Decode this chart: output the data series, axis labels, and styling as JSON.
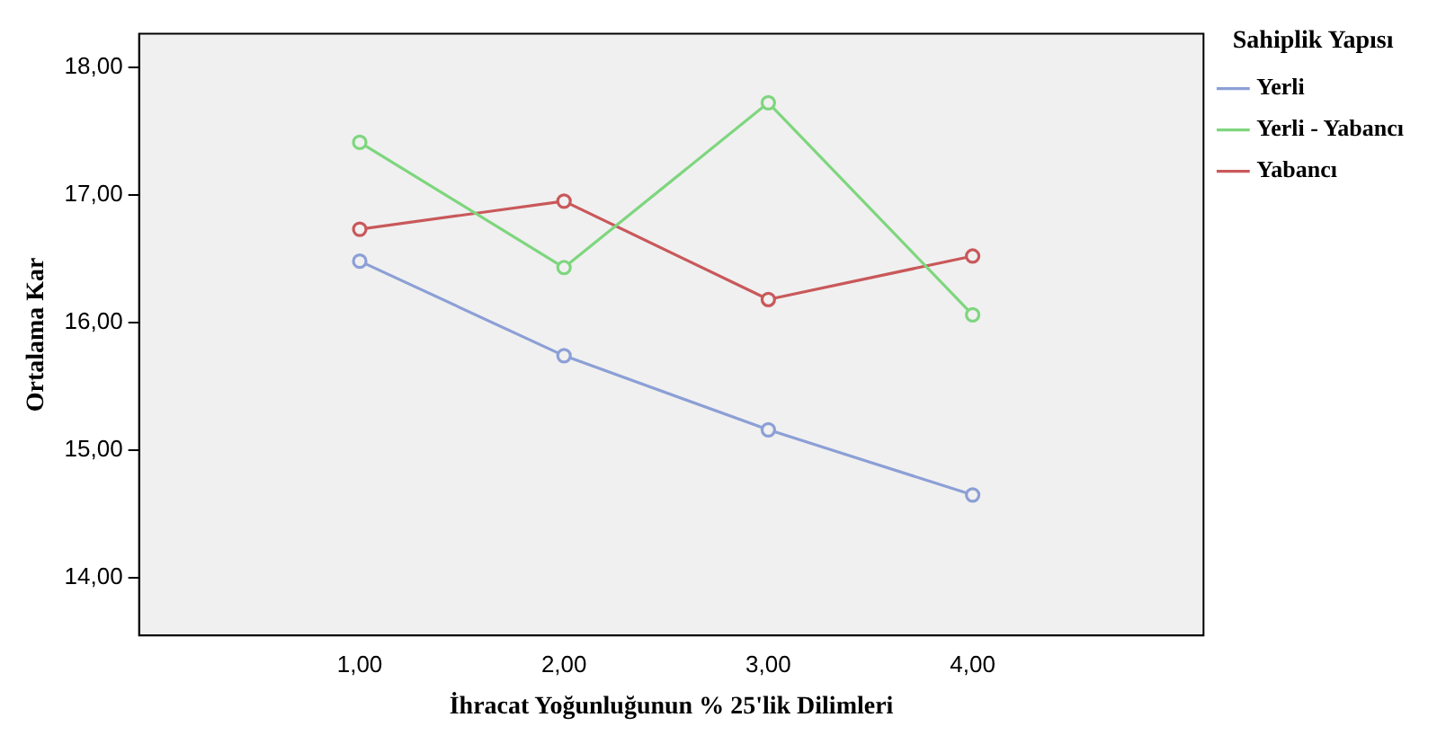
{
  "chart_data": {
    "type": "line",
    "xlabel": "İhracat Yoğunluğunun % 25'lik Dilimleri",
    "ylabel": "Ortalama Kar",
    "legend_title": "Sahiplik Yapısı",
    "legend": "right",
    "marker": "circle",
    "line_style": "solid",
    "grid": false,
    "x": [
      1,
      2,
      3,
      4
    ],
    "xlim": [
      -0.08,
      5.13
    ],
    "xticks": [
      {
        "value": 1,
        "label": "1,00"
      },
      {
        "value": 2,
        "label": "2,00"
      },
      {
        "value": 3,
        "label": "3,00"
      },
      {
        "value": 4,
        "label": "4,00"
      }
    ],
    "ylim": [
      13.55,
      18.26
    ],
    "yticks": [
      {
        "value": 14,
        "label": "14,00"
      },
      {
        "value": 15,
        "label": "15,00"
      },
      {
        "value": 16,
        "label": "16,00"
      },
      {
        "value": 17,
        "label": "17,00"
      },
      {
        "value": 18,
        "label": "18,00"
      }
    ],
    "series": [
      {
        "name": "Yerli",
        "color": "#8c9fd6",
        "values": [
          16.48,
          15.74,
          15.16,
          14.65
        ]
      },
      {
        "name": "Yerli - Yabancı",
        "color": "#7ed67e",
        "values": [
          17.41,
          16.43,
          17.72,
          16.06
        ]
      },
      {
        "name": "Yabancı",
        "color": "#c9585a",
        "values": [
          16.73,
          16.95,
          16.18,
          16.52
        ]
      }
    ]
  }
}
